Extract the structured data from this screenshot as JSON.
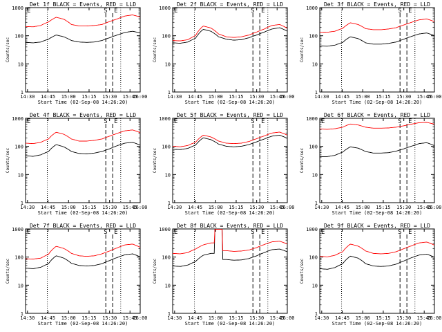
{
  "chart_data": [
    {
      "type": "line",
      "title": "Det 1f BLACK = Events, RED = LLD",
      "xlabel": "Start Time (02-Sep-08 14:26:20)",
      "ylabel": "Counts/sec",
      "x_ticks": [
        "14:30",
        "14:45",
        "15:00",
        "15:15",
        "15:30",
        "15:45",
        "16:00"
      ],
      "y_ticks": [
        "1",
        "10",
        "100",
        "1000"
      ],
      "ylim": [
        1,
        1000
      ],
      "yscale": "log",
      "markers": [
        "E",
        "S",
        "E"
      ],
      "series": [
        {
          "color": "#000000",
          "values": [
            60,
            58,
            62,
            78,
            110,
            95,
            70,
            62,
            60,
            62,
            70,
            88,
            110,
            135,
            150,
            130
          ]
        },
        {
          "color": "#ff0000",
          "values": [
            220,
            215,
            240,
            320,
            470,
            400,
            260,
            230,
            230,
            240,
            260,
            330,
            410,
            520,
            570,
            480
          ]
        }
      ]
    },
    {
      "type": "line",
      "title": "Det 2f BLACK = Events, RED = LLD",
      "xlabel": "Start Time (02-Sep-08 14:26:20)",
      "ylabel": "Counts/sec",
      "x_ticks": [
        "14:30",
        "14:45",
        "15:00",
        "15:15",
        "15:30",
        "15:45",
        "16:00"
      ],
      "y_ticks": [
        "1",
        "10",
        "100",
        "1000"
      ],
      "ylim": [
        1,
        1000
      ],
      "yscale": "log",
      "markers": [
        "E",
        "S",
        "E"
      ],
      "series": [
        {
          "color": "#000000",
          "values": [
            58,
            56,
            62,
            85,
            175,
            150,
            95,
            78,
            72,
            75,
            88,
            110,
            140,
            180,
            200,
            150
          ]
        },
        {
          "color": "#ff0000",
          "values": [
            70,
            68,
            75,
            105,
            230,
            195,
            120,
            95,
            90,
            95,
            110,
            140,
            180,
            240,
            260,
            190
          ]
        }
      ]
    },
    {
      "type": "line",
      "title": "Det 3f BLACK = Events, RED = LLD",
      "xlabel": "Start Time (02-Sep-08 14:26:20)",
      "ylabel": "Counts/sec",
      "x_ticks": [
        "14:30",
        "14:45",
        "15:00",
        "15:15",
        "15:30",
        "15:45",
        "16:00"
      ],
      "y_ticks": [
        "1",
        "10",
        "100",
        "1000"
      ],
      "ylim": [
        1,
        1000
      ],
      "yscale": "log",
      "markers": [
        "S",
        "E"
      ],
      "series": [
        {
          "color": "#000000",
          "values": [
            45,
            44,
            48,
            60,
            95,
            82,
            58,
            52,
            52,
            55,
            62,
            78,
            98,
            120,
            130,
            105
          ]
        },
        {
          "color": "#ff0000",
          "values": [
            140,
            138,
            150,
            190,
            300,
            260,
            185,
            170,
            170,
            180,
            200,
            250,
            310,
            380,
            410,
            330
          ]
        }
      ]
    },
    {
      "type": "line",
      "title": "Det 4f BLACK = Events, RED = LLD",
      "xlabel": "Start Time (02-Sep-08 14:26:20)",
      "ylabel": "Counts/sec",
      "x_ticks": [
        "14:30",
        "14:45",
        "15:00",
        "15:15",
        "15:30",
        "15:45",
        "16:00"
      ],
      "y_ticks": [
        "1",
        "10",
        "100",
        "1000"
      ],
      "ylim": [
        1,
        1000
      ],
      "yscale": "log",
      "markers": [
        "E",
        "S",
        "E"
      ],
      "series": [
        {
          "color": "#000000",
          "values": [
            48,
            46,
            52,
            68,
            120,
            100,
            68,
            58,
            56,
            60,
            68,
            85,
            110,
            135,
            145,
            115
          ]
        },
        {
          "color": "#ff0000",
          "values": [
            135,
            130,
            145,
            190,
            330,
            280,
            190,
            160,
            160,
            170,
            190,
            240,
            300,
            370,
            400,
            320
          ]
        }
      ]
    },
    {
      "type": "line",
      "title": "Det 5f BLACK = Events, RED = LLD",
      "xlabel": "Start Time (02-Sep-08 14:26:20)",
      "ylabel": "Counts/sec",
      "x_ticks": [
        "14:30",
        "14:45",
        "15:00",
        "15:15",
        "15:30",
        "15:45",
        "16:00"
      ],
      "y_ticks": [
        "1",
        "10",
        "100",
        "1000"
      ],
      "ylim": [
        1,
        1000
      ],
      "yscale": "log",
      "markers": [
        "E",
        "S",
        "E"
      ],
      "series": [
        {
          "color": "#000000",
          "values": [
            82,
            80,
            88,
            115,
            210,
            180,
            125,
            105,
            100,
            105,
            120,
            150,
            190,
            240,
            260,
            200
          ]
        },
        {
          "color": "#ff0000",
          "values": [
            105,
            100,
            112,
            145,
            260,
            225,
            160,
            135,
            130,
            135,
            155,
            195,
            245,
            310,
            335,
            260
          ]
        }
      ]
    },
    {
      "type": "line",
      "title": "Det 6f BLACK = Events, RED = LLD",
      "xlabel": "Start Time (02-Sep-08 14:26:20)",
      "ylabel": "Counts/sec",
      "x_ticks": [
        "14:30",
        "14:45",
        "15:00",
        "15:15",
        "15:30",
        "15:45",
        "16:00"
      ],
      "y_ticks": [
        "1",
        "10",
        "100",
        "1000"
      ],
      "ylim": [
        1,
        1000
      ],
      "yscale": "log",
      "markers": [
        "E",
        "S",
        "E"
      ],
      "series": [
        {
          "color": "#000000",
          "values": [
            45,
            45,
            50,
            65,
            100,
            90,
            68,
            60,
            60,
            62,
            70,
            85,
            105,
            130,
            140,
            110
          ]
        },
        {
          "color": "#ff0000",
          "values": [
            430,
            420,
            440,
            500,
            650,
            600,
            500,
            460,
            460,
            470,
            500,
            560,
            640,
            720,
            740,
            640
          ]
        }
      ]
    },
    {
      "type": "line",
      "title": "Det 7f BLACK = Events, RED = LLD",
      "xlabel": "Start Time (02-Sep-08 14:26:20)",
      "ylabel": "Counts/sec",
      "x_ticks": [
        "14:30",
        "14:45",
        "15:00",
        "15:15",
        "15:30",
        "15:45",
        "16:00"
      ],
      "y_ticks": [
        "1",
        "10",
        "100",
        "1000"
      ],
      "ylim": [
        1,
        1000
      ],
      "yscale": "log",
      "markers": [
        "E",
        "S",
        "E"
      ],
      "series": [
        {
          "color": "#000000",
          "values": [
            42,
            40,
            45,
            60,
            115,
            95,
            62,
            52,
            50,
            52,
            60,
            78,
            100,
            125,
            135,
            105
          ]
        },
        {
          "color": "#ff0000",
          "values": [
            90,
            88,
            95,
            130,
            250,
            210,
            140,
            115,
            110,
            115,
            135,
            170,
            220,
            280,
            300,
            230
          ]
        }
      ]
    },
    {
      "type": "line",
      "title": "Det 8f BLACK = Events, RED = LLD",
      "xlabel": "Start Time (02-Sep-08 14:26:20)",
      "ylabel": "Counts/sec",
      "x_ticks": [
        "14:30",
        "14:45",
        "15:00",
        "15:15",
        "15:30",
        "15:45",
        "16:00"
      ],
      "y_ticks": [
        "1",
        "10",
        "100",
        "1000"
      ],
      "ylim": [
        1,
        1000
      ],
      "yscale": "log",
      "markers": [
        "E",
        "S",
        "E"
      ],
      "series": [
        {
          "color": "#000000",
          "values": [
            50,
            48,
            54,
            72,
            120,
            140,
            1000,
            85,
            80,
            82,
            92,
            115,
            150,
            190,
            200,
            160
          ]
        },
        {
          "color": "#ff0000",
          "values": [
            140,
            135,
            150,
            200,
            280,
            330,
            1000,
            175,
            165,
            170,
            185,
            225,
            290,
            360,
            380,
            300
          ]
        }
      ]
    },
    {
      "type": "line",
      "title": "Det 9f BLACK = Events, RED = LLD",
      "xlabel": "Start Time (02-Sep-08 14:26:20)",
      "ylabel": "Counts/sec",
      "x_ticks": [
        "14:30",
        "14:45",
        "15:00",
        "15:15",
        "15:30",
        "15:45",
        "16:00"
      ],
      "y_ticks": [
        "1",
        "10",
        "100",
        "1000"
      ],
      "ylim": [
        1,
        1000
      ],
      "yscale": "log",
      "markers": [
        "E",
        "S",
        "E"
      ],
      "series": [
        {
          "color": "#000000",
          "values": [
            40,
            38,
            44,
            60,
            112,
            95,
            60,
            50,
            48,
            50,
            58,
            75,
            98,
            122,
            132,
            102
          ]
        },
        {
          "color": "#ff0000",
          "values": [
            110,
            105,
            120,
            160,
            300,
            255,
            170,
            140,
            135,
            140,
            160,
            205,
            260,
            330,
            355,
            275
          ]
        }
      ]
    }
  ]
}
